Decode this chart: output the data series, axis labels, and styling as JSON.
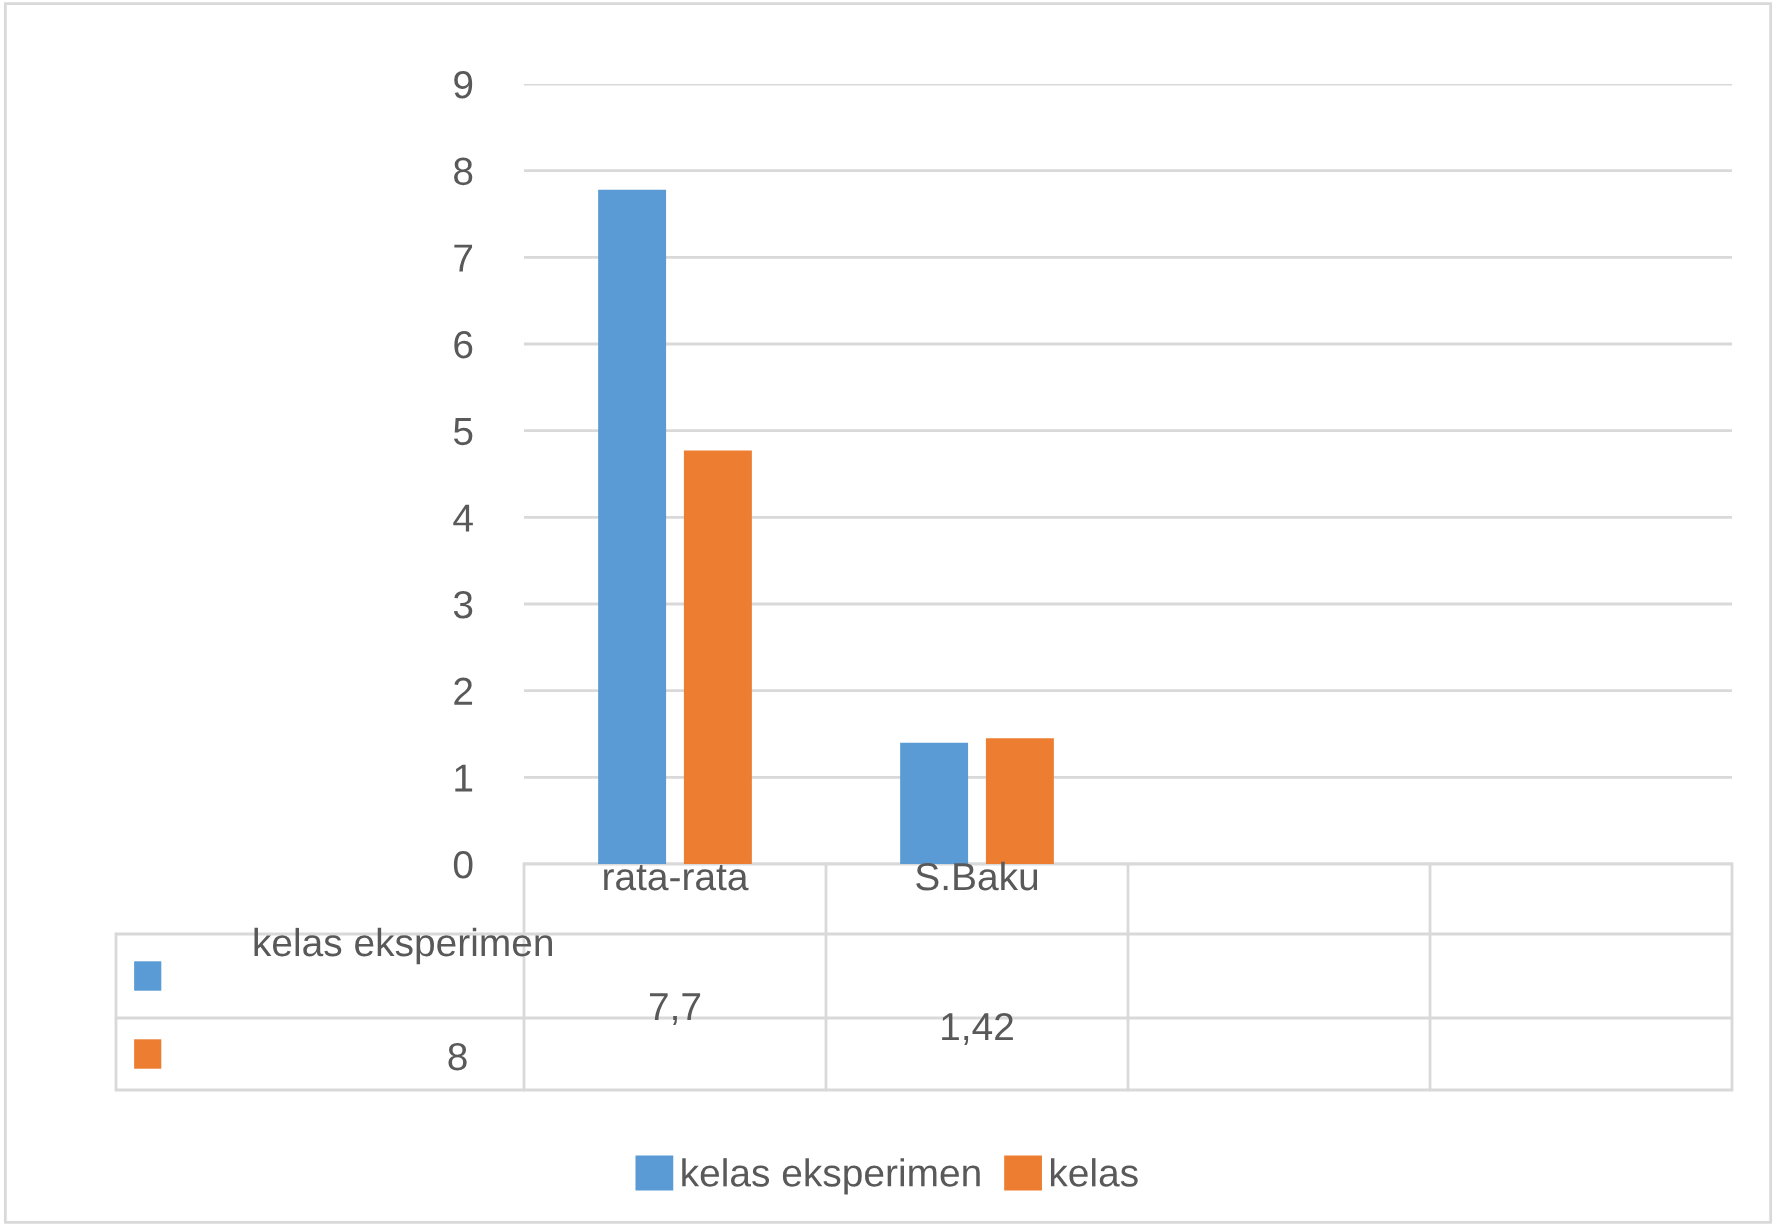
{
  "chart_data": {
    "type": "bar",
    "categories": [
      "rata-rata",
      "S.Baku",
      null,
      null
    ],
    "series": [
      {
        "name": "kelas eksperimen",
        "color": "#5b9bd5",
        "values": [
          7.78,
          1.4,
          null,
          null
        ]
      },
      {
        "name": "kelas",
        "color": "#ed7d31",
        "values": [
          4.77,
          1.45,
          null,
          null
        ]
      }
    ],
    "ylim": [
      0,
      9
    ],
    "yticks": [
      0,
      1,
      2,
      3,
      4,
      5,
      6,
      7,
      8,
      9
    ],
    "grid": "y",
    "legend": "bottom",
    "annotations": [
      "7,7",
      "1,42",
      "8"
    ]
  }
}
